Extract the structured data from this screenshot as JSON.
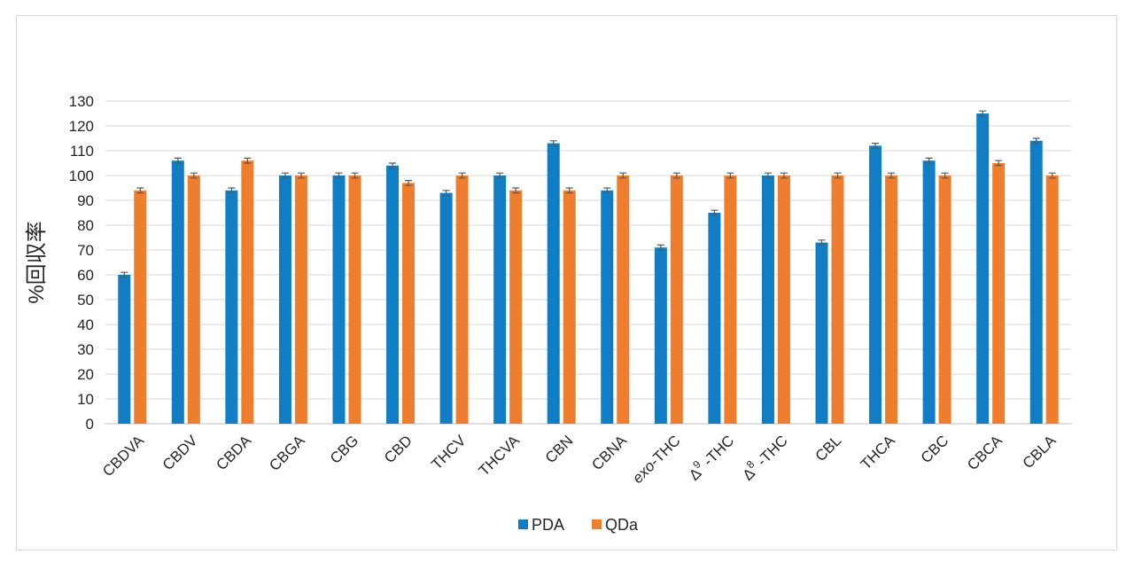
{
  "chart_data": {
    "type": "bar",
    "title": "",
    "xlabel": "",
    "ylabel": "%回収率",
    "ylim": [
      0,
      130
    ],
    "yticks": [
      0,
      10,
      20,
      30,
      40,
      50,
      60,
      70,
      80,
      90,
      100,
      110,
      120,
      130
    ],
    "grid": true,
    "legend_position": "bottom",
    "categories": [
      "CBDVA",
      "CBDV",
      "CBDA",
      "CBGA",
      "CBG",
      "CBD",
      "THCV",
      "THCVA",
      "CBN",
      "CBNA",
      "exo-THC",
      "Δ9-THC",
      "Δ8-THC",
      "CBL",
      "THCA",
      "CBC",
      "CBCA",
      "CBLA"
    ],
    "series": [
      {
        "name": "PDA",
        "color": "#0f7ec4",
        "values": [
          60,
          106,
          94,
          100,
          100,
          104,
          93,
          100,
          113,
          94,
          71,
          85,
          100,
          73,
          112,
          106,
          125,
          114
        ],
        "error": [
          1,
          1,
          1,
          1,
          1,
          1,
          1,
          1,
          1,
          1,
          1,
          1,
          1,
          1,
          1,
          1,
          1,
          1
        ]
      },
      {
        "name": "QDa",
        "color": "#ef7d2e",
        "values": [
          94,
          100,
          106,
          100,
          100,
          97,
          100,
          94,
          94,
          100,
          100,
          100,
          100,
          100,
          100,
          100,
          105,
          100
        ],
        "error": [
          1,
          1,
          1,
          1,
          1,
          1,
          1,
          1,
          1,
          1,
          1,
          1,
          1,
          1,
          1,
          1,
          1,
          1
        ]
      }
    ]
  }
}
